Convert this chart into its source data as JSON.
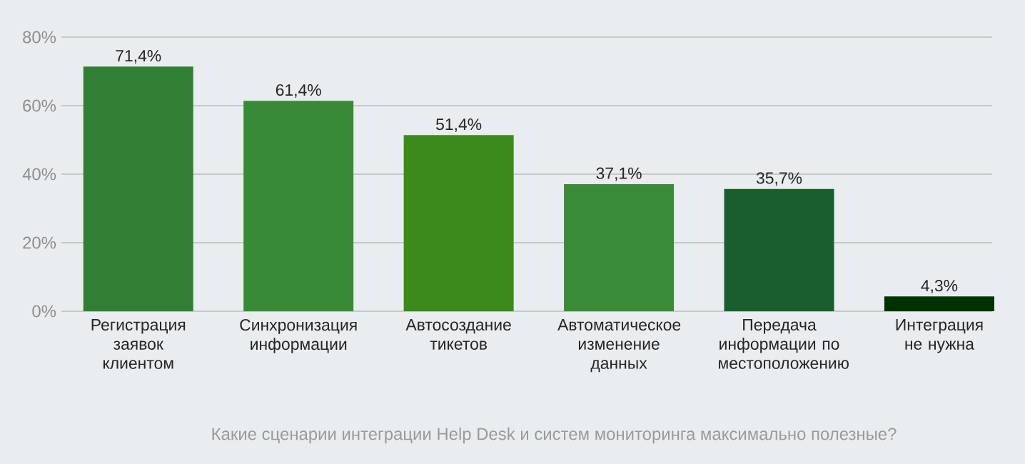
{
  "chart_data": {
    "type": "bar",
    "title": "Какие сценарии интеграции Help Desk и систем мониторинга максимально полезные?",
    "categories": [
      "Регистрация заявок клиентом",
      "Синхронизация информации",
      "Автосоздание тикетов",
      "Автоматическое изменение данных",
      "Передача информации по местоположению",
      "Интеграция не нужна"
    ],
    "values": [
      71.4,
      61.4,
      51.4,
      37.1,
      35.7,
      4.3
    ],
    "value_labels": [
      "71,4%",
      "61,4%",
      "51,4%",
      "37,1%",
      "35,7%",
      "4,3%"
    ],
    "colors": [
      "#317f34",
      "#388a37",
      "#3c8a1c",
      "#3a8b38",
      "#1a5e2d",
      "#013201"
    ],
    "ylim": [
      0,
      80
    ],
    "yticks": [
      {
        "value": 0,
        "label": "0%"
      },
      {
        "value": 20,
        "label": "20%"
      },
      {
        "value": 40,
        "label": "40%"
      },
      {
        "value": 60,
        "label": "60%"
      },
      {
        "value": 80,
        "label": "80%"
      }
    ],
    "grid": "y"
  }
}
